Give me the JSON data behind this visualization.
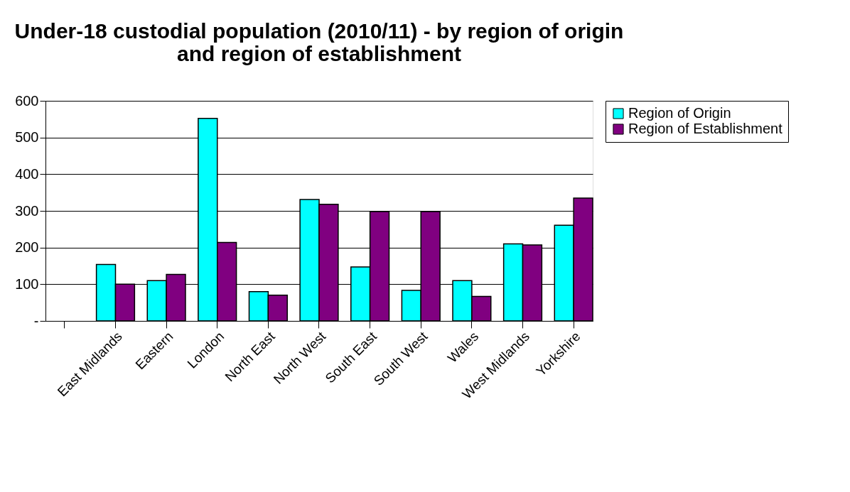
{
  "chart_data": {
    "type": "bar",
    "title": "Under-18 custodial population (2010/11) - by region of origin and region of establishment",
    "categories": [
      null,
      "East Midlands",
      "Eastern",
      "London",
      "North East",
      "North West",
      "South East",
      "South West",
      "Wales",
      "West Midlands",
      "Yorkshire"
    ],
    "series": [
      {
        "name": "Region of Origin",
        "color": "#00ffff",
        "values": [
          null,
          154,
          110,
          552,
          80,
          331,
          147,
          83,
          110,
          210,
          261
        ]
      },
      {
        "name": "Region of Establishment",
        "color": "#800080",
        "values": [
          null,
          100,
          127,
          214,
          70,
          318,
          298,
          298,
          67,
          207,
          335
        ]
      }
    ],
    "ylim": [
      0,
      600
    ],
    "yticks": [
      {
        "value": 0,
        "label": "-"
      },
      100,
      200,
      300,
      400,
      500,
      600
    ],
    "grid": "y",
    "legend": "right"
  }
}
